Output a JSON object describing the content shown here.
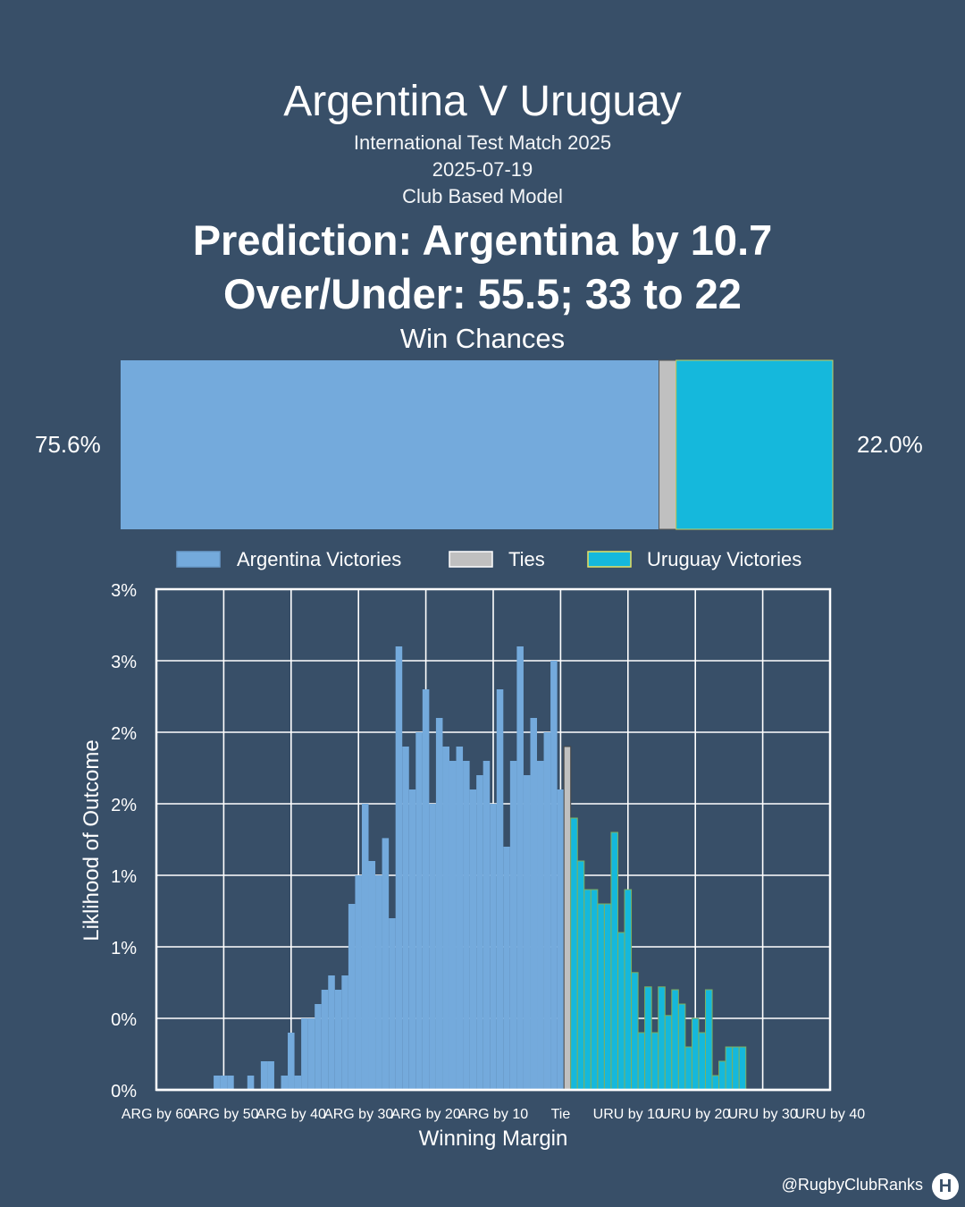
{
  "header": {
    "title": "Argentina V Uruguay",
    "competition": "International Test Match 2025",
    "date": "2025-07-19",
    "model": "Club Based Model",
    "prediction": "Prediction: Argentina by 10.7",
    "over_under": "Over/Under: 55.5; 33 to 22"
  },
  "win_chances": {
    "title": "Win Chances",
    "left_label": "75.6%",
    "right_label": "22.0%",
    "argentina": 75.6,
    "tie": 2.4,
    "uruguay": 22.0
  },
  "colors": {
    "background": "#384f68",
    "argentina": "#74aadc",
    "tie": "#c0c0c0",
    "uruguay": "#15b8dc",
    "grid": "#ffffff"
  },
  "legend": [
    "Argentina Victories",
    "Ties",
    "Uruguay Victories"
  ],
  "chart_data": {
    "type": "bar",
    "xlabel": "Winning Margin",
    "ylabel": "Liklihood of Outcome",
    "y_tick_labels": [
      "0%",
      "0%",
      "1%",
      "1%",
      "2%",
      "2%",
      "3%",
      "3%"
    ],
    "x_tick_labels": [
      "ARG by 60",
      "ARG by 50",
      "ARG by 40",
      "ARG by 30",
      "ARG by 20",
      "ARG by 10",
      "Tie",
      "URU by 10",
      "URU by 20",
      "URU by 30",
      "URU by 40"
    ],
    "xlim": [
      -60,
      40
    ],
    "ylim": [
      0,
      3.5
    ],
    "grid": true,
    "legend_position": "top",
    "x": [
      -59,
      -58,
      -57,
      -56,
      -55,
      -54,
      -53,
      -52,
      -51,
      -50,
      -49,
      -48,
      -47,
      -46,
      -45,
      -44,
      -43,
      -42,
      -41,
      -40,
      -39,
      -38,
      -37,
      -36,
      -35,
      -34,
      -33,
      -32,
      -31,
      -30,
      -29,
      -28,
      -27,
      -26,
      -25,
      -24,
      -23,
      -22,
      -21,
      -20,
      -19,
      -18,
      -17,
      -16,
      -15,
      -14,
      -13,
      -12,
      -11,
      -10,
      -9,
      -8,
      -7,
      -6,
      -5,
      -4,
      -3,
      -2,
      -1,
      0,
      1,
      2,
      3,
      4,
      5,
      6,
      7,
      8,
      9,
      10,
      11,
      12,
      13,
      14,
      15,
      16,
      17,
      18,
      19,
      20,
      21,
      22,
      23,
      24,
      25,
      26,
      27,
      28,
      29,
      30,
      31,
      32,
      33,
      34,
      35,
      36,
      37,
      38,
      39
    ],
    "series": [
      {
        "name": "Argentina Victories",
        "values": [
          0,
          0,
          0,
          0,
          0,
          0,
          0,
          0,
          0.1,
          0.1,
          0.1,
          0,
          0,
          0.1,
          0,
          0.2,
          0.2,
          0,
          0.1,
          0.4,
          0.1,
          0.5,
          0.5,
          0.6,
          0.7,
          0.8,
          0.7,
          0.8,
          1.3,
          1.5,
          2.0,
          1.6,
          1.5,
          1.76,
          1.2,
          3.1,
          2.4,
          2.1,
          2.5,
          2.8,
          2.0,
          2.6,
          2.4,
          2.3,
          2.4,
          2.3,
          2.1,
          2.2,
          2.3,
          2.0,
          2.8,
          1.7,
          2.3,
          3.1,
          2.2,
          2.6,
          2.3,
          2.5,
          3.0,
          2.1,
          0,
          0,
          0,
          0,
          0,
          0,
          0,
          0,
          0,
          0,
          0,
          0,
          0,
          0,
          0,
          0,
          0,
          0,
          0,
          0,
          0,
          0,
          0,
          0,
          0,
          0,
          0,
          0,
          0,
          0,
          0,
          0,
          0,
          0,
          0,
          0,
          0,
          0,
          0
        ]
      },
      {
        "name": "Ties",
        "values": [
          0,
          0,
          0,
          0,
          0,
          0,
          0,
          0,
          0,
          0,
          0,
          0,
          0,
          0,
          0,
          0,
          0,
          0,
          0,
          0,
          0,
          0,
          0,
          0,
          0,
          0,
          0,
          0,
          0,
          0,
          0,
          0,
          0,
          0,
          0,
          0,
          0,
          0,
          0,
          0,
          0,
          0,
          0,
          0,
          0,
          0,
          0,
          0,
          0,
          0,
          0,
          0,
          0,
          0,
          0,
          0,
          0,
          0,
          0,
          0,
          2.4,
          0,
          0,
          0,
          0,
          0,
          0,
          0,
          0,
          0,
          0,
          0,
          0,
          0,
          0,
          0,
          0,
          0,
          0,
          0,
          0,
          0,
          0,
          0,
          0,
          0,
          0,
          0,
          0,
          0,
          0,
          0,
          0,
          0,
          0,
          0,
          0,
          0,
          0
        ]
      },
      {
        "name": "Uruguay Victories",
        "values": [
          0,
          0,
          0,
          0,
          0,
          0,
          0,
          0,
          0,
          0,
          0,
          0,
          0,
          0,
          0,
          0,
          0,
          0,
          0,
          0,
          0,
          0,
          0,
          0,
          0,
          0,
          0,
          0,
          0,
          0,
          0,
          0,
          0,
          0,
          0,
          0,
          0,
          0,
          0,
          0,
          0,
          0,
          0,
          0,
          0,
          0,
          0,
          0,
          0,
          0,
          0,
          0,
          0,
          0,
          0,
          0,
          0,
          0,
          0,
          0,
          0,
          1.9,
          1.6,
          1.4,
          1.4,
          1.3,
          1.3,
          1.8,
          1.1,
          1.4,
          0.82,
          0.4,
          0.72,
          0.4,
          0.72,
          0.52,
          0.7,
          0.6,
          0.3,
          0.5,
          0.4,
          0.7,
          0.1,
          0.2,
          0.3,
          0.3,
          0.3,
          0,
          0,
          0,
          0,
          0,
          0,
          0,
          0,
          0,
          0,
          0,
          0
        ]
      }
    ]
  }
}
